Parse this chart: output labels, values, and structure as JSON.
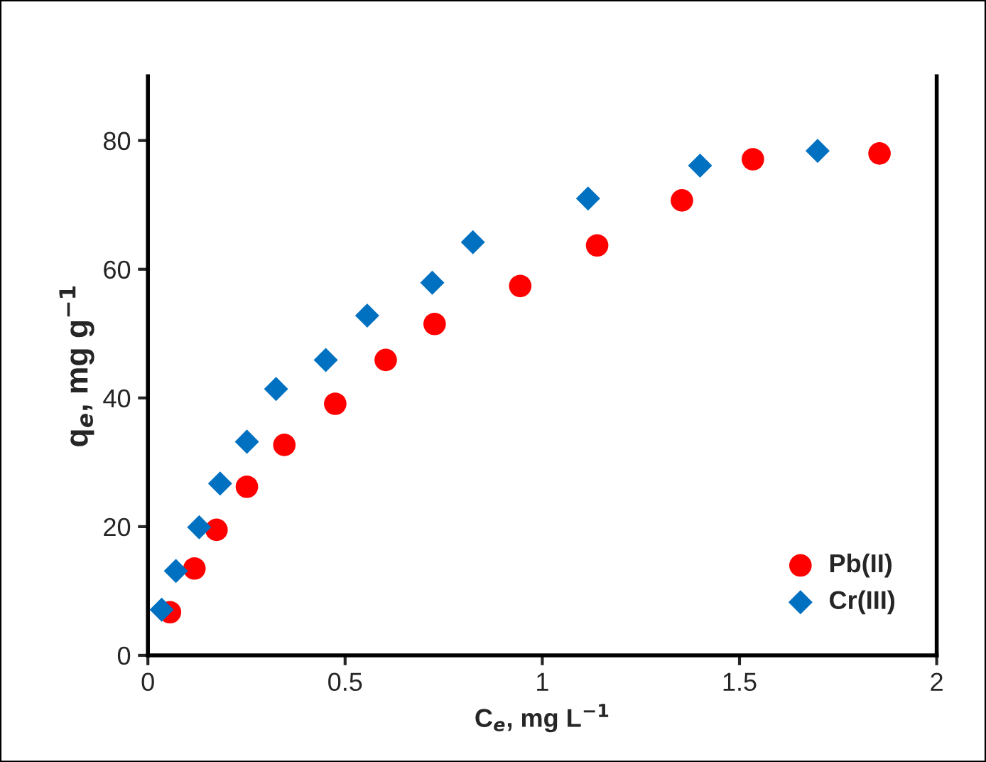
{
  "chart_data": {
    "type": "scatter",
    "xlabel": "C$_{e}$, mg L$^{−1}$",
    "ylabel": "q$_{e}$, mg g$^{−1}$",
    "xlim": [
      0,
      2
    ],
    "xticks": [
      0,
      {
        "value": 0.5,
        "label": "0.5"
      },
      1,
      {
        "value": 1.5,
        "label": "1.5"
      },
      2
    ],
    "ylim": [
      0,
      90
    ],
    "yticks": [
      0,
      20,
      40,
      60,
      80
    ],
    "grid": false,
    "legend": "bottom right",
    "series": [
      {
        "name": "Pb(II)",
        "color": "#ff0000",
        "marker": "circle",
        "x": [
          0.056,
          0.118,
          0.174,
          0.251,
          0.346,
          0.475,
          0.603,
          0.727,
          0.944,
          1.139,
          1.354,
          1.534,
          1.855
        ],
        "values": [
          6.7,
          13.5,
          19.5,
          26.2,
          32.7,
          39.1,
          45.9,
          51.5,
          57.4,
          63.7,
          70.7,
          77.1,
          78.0
        ]
      },
      {
        "name": "Cr(III)",
        "color": "#0070c0",
        "marker": "diamond",
        "x": [
          0.035,
          0.071,
          0.13,
          0.183,
          0.251,
          0.325,
          0.451,
          0.556,
          0.721,
          0.824,
          1.116,
          1.4,
          1.698
        ],
        "values": [
          7.1,
          13.1,
          19.9,
          26.7,
          33.2,
          41.4,
          45.9,
          52.8,
          57.9,
          64.2,
          71.0,
          76.1,
          78.4
        ]
      }
    ]
  }
}
